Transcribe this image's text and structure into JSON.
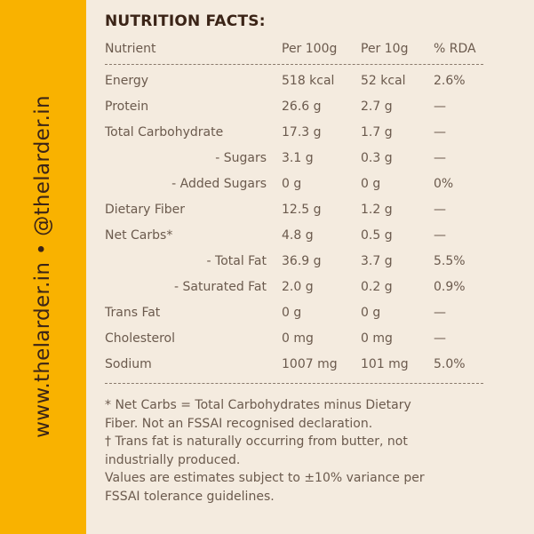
{
  "sidebar": {
    "text": "www.thelarder.in  •  @thelarder.in",
    "color": "#f9b200"
  },
  "title": "NUTRITION FACTS:",
  "columns": [
    "Nutrient",
    "Per 100g",
    "Per 10g",
    "% RDA"
  ],
  "rows": [
    {
      "nutrient": "Energy",
      "per100": "518 kcal",
      "per10": "52 kcal",
      "rda": "2.6%"
    },
    {
      "nutrient": "Protein",
      "per100": "26.6 g",
      "per10": "2.7 g",
      "rda": "—"
    },
    {
      "nutrient": "Total Carbohydrate",
      "per100": "17.3 g",
      "per10": "1.7 g",
      "rda": "—"
    },
    {
      "nutrient": "- Sugars",
      "per100": "3.1 g",
      "per10": "0.3 g",
      "rda": "—"
    },
    {
      "nutrient": "- Added Sugars",
      "per100": "0 g",
      "per10": "0 g",
      "rda": "0%"
    },
    {
      "nutrient": "Dietary Fiber",
      "per100": "12.5 g",
      "per10": "1.2 g",
      "rda": "—"
    },
    {
      "nutrient": "Net Carbs*",
      "per100": "4.8 g",
      "per10": "0.5 g",
      "rda": "—"
    },
    {
      "nutrient": "- Total Fat",
      "per100": "36.9 g",
      "per10": "3.7 g",
      "rda": "5.5%"
    },
    {
      "nutrient": "- Saturated Fat",
      "per100": "2.0 g",
      "per10": "0.2 g",
      "rda": "0.9%"
    },
    {
      "nutrient": "Trans Fat",
      "per100": "0 g",
      "per10": "0 g",
      "rda": "—"
    },
    {
      "nutrient": "Cholesterol",
      "per100": "0 mg",
      "per10": "0 mg",
      "rda": "—"
    },
    {
      "nutrient": "Sodium",
      "per100": "1007 mg",
      "per10": "101 mg",
      "rda": "5.0%"
    }
  ],
  "notes": [
    "* Net Carbs = Total Carbohydrates minus Dietary",
    "Fiber. Not an FSSAI recognised declaration.",
    "† Trans fat is naturally occurring from butter, not",
    "industrially produced.",
    "Values are estimates subject to ±10% variance per",
    "FSSAI tolerance guidelines."
  ]
}
